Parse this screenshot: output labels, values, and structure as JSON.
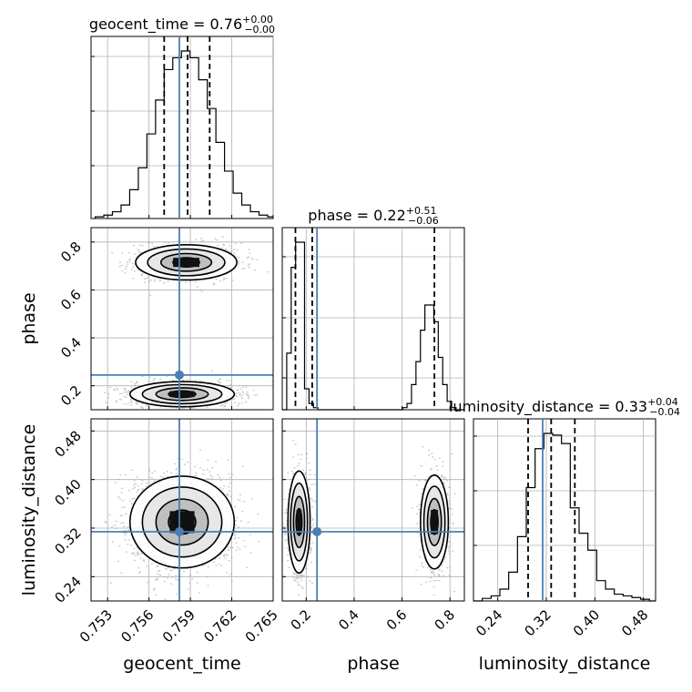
{
  "chart_data": {
    "type": "corner",
    "parameters": [
      "geocent_time",
      "phase",
      "luminosity_distance"
    ],
    "truth": {
      "geocent_time": 0.7582,
      "phase": 0.245,
      "luminosity_distance": 0.314
    },
    "titles": [
      {
        "param": "geocent_time",
        "text": "geocent_time = 0.76",
        "sup": "+0.00",
        "sub": "−0.00"
      },
      {
        "param": "phase",
        "text": "phase = 0.22",
        "sup": "+0.51",
        "sub": "−0.06"
      },
      {
        "param": "luminosity_distance",
        "text": "luminosity_distance = 0.33",
        "sup": "+0.04",
        "sub": "−0.04"
      }
    ],
    "ranges": {
      "geocent_time": [
        0.7518,
        0.765
      ],
      "phase": [
        0.1,
        0.86
      ],
      "luminosity_distance": [
        0.2,
        0.5
      ]
    },
    "ticks": {
      "geocent_time": [
        0.753,
        0.756,
        0.759,
        0.762,
        0.765
      ],
      "phase_y": [
        0.2,
        0.4,
        0.6,
        0.8
      ],
      "phase_x": [
        0.2,
        0.4,
        0.6,
        0.8
      ],
      "luminosity_distance": [
        0.24,
        0.32,
        0.4,
        0.48
      ]
    },
    "tick_labels": {
      "geocent_time": [
        "0.753",
        "0.756",
        "0.759",
        "0.762",
        "0.765"
      ],
      "phase_y": [
        "0.2",
        "0.4",
        "0.6",
        "0.8"
      ],
      "phase_x": [
        "0.2",
        "0.4",
        "0.6",
        "0.8"
      ],
      "luminosity_distance": [
        "0.24",
        "0.32",
        "0.40",
        "0.48"
      ]
    },
    "quantiles": {
      "geocent_time": [
        0.7571,
        0.7588,
        0.7604
      ],
      "phase": [
        0.155,
        0.225,
        0.735
      ],
      "luminosity_distance": [
        0.29,
        0.328,
        0.367
      ]
    },
    "histograms": {
      "geocent_time": {
        "start": 0.7521,
        "width": 0.000625,
        "counts": [
          1,
          2,
          4,
          8,
          17,
          30,
          50,
          70,
          88,
          95,
          99,
          95,
          82,
          65,
          45,
          28,
          15,
          8,
          4,
          2,
          1
        ]
      },
      "phase": {
        "start": 0.1,
        "width": 0.0186,
        "counts": [
          0,
          0.27,
          0.68,
          0.8,
          0.8,
          0.1,
          0.03,
          0.01,
          0,
          0,
          0,
          0,
          0,
          0,
          0,
          0,
          0,
          0,
          0,
          0,
          0,
          0,
          0,
          0,
          0,
          0,
          0,
          0.01,
          0.03,
          0.12,
          0.23,
          0.38,
          0.5,
          0.5,
          0.42,
          0.25,
          0.12,
          0.04,
          0.01,
          0,
          0
        ]
      },
      "luminosity_distance": {
        "start": 0.2,
        "width": 0.0145,
        "counts": [
          0,
          0.015,
          0.03,
          0.07,
          0.17,
          0.38,
          0.67,
          0.9,
          0.99,
          0.98,
          0.93,
          0.55,
          0.4,
          0.3,
          0.12,
          0.07,
          0.04,
          0.03,
          0.02,
          0.01,
          0
        ]
      }
    },
    "contour_modes": {
      "geocent_time_vs_phase": [
        {
          "x": 0.7584,
          "y": 0.165,
          "sx": 0.0018,
          "sy": 0.025,
          "w": 1.0
        },
        {
          "x": 0.7587,
          "y": 0.715,
          "sx": 0.0019,
          "sy": 0.038,
          "w": 0.55
        }
      ],
      "geocent_time_vs_luminosity_distance": [
        {
          "x": 0.7584,
          "y": 0.33,
          "sx": 0.0018,
          "sy": 0.036,
          "w": 1.0
        }
      ],
      "phase_vs_luminosity_distance": [
        {
          "x": 0.17,
          "y": 0.33,
          "sx": 0.022,
          "sy": 0.04,
          "w": 1.0
        },
        {
          "x": 0.735,
          "y": 0.33,
          "sx": 0.03,
          "sy": 0.04,
          "w": 0.55
        }
      ]
    },
    "colors": {
      "truth": "#4a7fb5",
      "grid": "#b0b0b0",
      "contour": "#000000",
      "points": "#999999"
    },
    "grid": true
  }
}
